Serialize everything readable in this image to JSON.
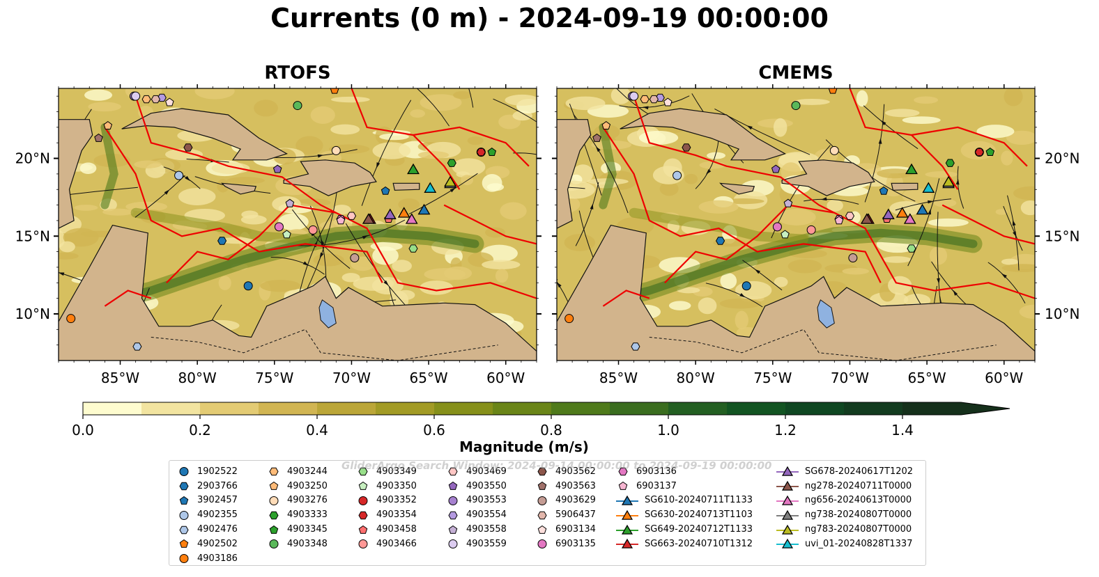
{
  "title": "Currents (0 m) - 2024-09-19 00:00:00",
  "panels": [
    {
      "title": "RTOFS"
    },
    {
      "title": "CMEMS"
    }
  ],
  "axes": {
    "lon_ticks": [
      "85°W",
      "80°W",
      "75°W",
      "70°W",
      "65°W",
      "60°W"
    ],
    "lon_values": [
      -85,
      -80,
      -75,
      -70,
      -65,
      -60
    ],
    "lat_ticks": [
      "20°N",
      "15°N",
      "10°N"
    ],
    "lat_values": [
      20,
      15,
      10
    ],
    "lon_range": [
      -89,
      -58
    ],
    "lat_range": [
      7,
      24.5
    ]
  },
  "colorbar": {
    "label": "Magnitude (m/s)",
    "ticks": [
      "0.0",
      "0.2",
      "0.4",
      "0.6",
      "0.8",
      "1.0",
      "1.2",
      "1.4"
    ],
    "tick_values": [
      0,
      0.2,
      0.4,
      0.6,
      0.8,
      1.0,
      1.2,
      1.4
    ],
    "range": [
      0,
      1.5
    ],
    "colors": [
      "#fefccf",
      "#f2e4a0",
      "#e3cb74",
      "#d1b552",
      "#bba638",
      "#a29b25",
      "#86901a",
      "#6a8518",
      "#4f7a1b",
      "#3a6d1f",
      "#235f22",
      "#125422",
      "#0f4722",
      "#123b1f",
      "#15301b"
    ]
  },
  "watermark": "GliderArgo Search Window: 2024-09-14 00:00:00 to 2024-09-19 00:00:00",
  "legend": {
    "columns": [
      [
        {
          "label": "1902522",
          "marker": "circle",
          "color": "#1f77b4"
        },
        {
          "label": "2903766",
          "marker": "hexagon",
          "color": "#1f77b4"
        },
        {
          "label": "3902457",
          "marker": "pentagon",
          "color": "#1f77b4"
        },
        {
          "label": "4902355",
          "marker": "circle",
          "color": "#aec7e8"
        },
        {
          "label": "4902476",
          "marker": "hexagon",
          "color": "#aec7e8"
        },
        {
          "label": "4902502",
          "marker": "pentagon",
          "color": "#ff7f0e"
        },
        {
          "label": "4903186",
          "marker": "circle",
          "color": "#ff7f0e"
        }
      ],
      [
        {
          "label": "4903244",
          "marker": "hexagon",
          "color": "#ffbb78"
        },
        {
          "label": "4903250",
          "marker": "pentagon",
          "color": "#ffbb78"
        },
        {
          "label": "4903276",
          "marker": "circle",
          "color": "#ffdcb8"
        },
        {
          "label": "4903333",
          "marker": "hexagon",
          "color": "#2ca02c"
        },
        {
          "label": "4903345",
          "marker": "pentagon",
          "color": "#2ca02c"
        },
        {
          "label": "4903348",
          "marker": "circle",
          "color": "#5ab85a"
        }
      ],
      [
        {
          "label": "4903349",
          "marker": "hexagon",
          "color": "#98df8a"
        },
        {
          "label": "4903350",
          "marker": "pentagon",
          "color": "#c7efc0"
        },
        {
          "label": "4903352",
          "marker": "circle",
          "color": "#d62728"
        },
        {
          "label": "4903354",
          "marker": "hexagon",
          "color": "#d62728"
        },
        {
          "label": "4903458",
          "marker": "pentagon",
          "color": "#ff6f6f"
        },
        {
          "label": "4903466",
          "marker": "circle",
          "color": "#ff9896"
        }
      ],
      [
        {
          "label": "4903469",
          "marker": "hexagon",
          "color": "#ffc6c4"
        },
        {
          "label": "4903550",
          "marker": "pentagon",
          "color": "#9467bd"
        },
        {
          "label": "4903553",
          "marker": "circle",
          "color": "#a681cf"
        },
        {
          "label": "4903554",
          "marker": "hexagon",
          "color": "#b49ae0"
        },
        {
          "label": "4903558",
          "marker": "pentagon",
          "color": "#c5b0d5"
        },
        {
          "label": "4903559",
          "marker": "circle",
          "color": "#dcccf0"
        }
      ],
      [
        {
          "label": "4903562",
          "marker": "hexagon",
          "color": "#8c564b"
        },
        {
          "label": "4903563",
          "marker": "pentagon",
          "color": "#a0716a"
        },
        {
          "label": "4903629",
          "marker": "circle",
          "color": "#c49c94"
        },
        {
          "label": "5906437",
          "marker": "hexagon",
          "color": "#e2b6ab"
        },
        {
          "label": "6903134",
          "marker": "pentagon",
          "color": "#fde0dd"
        },
        {
          "label": "6903135",
          "marker": "circle",
          "color": "#e377c2"
        }
      ],
      [
        {
          "label": "6903136",
          "marker": "hexagon",
          "color": "#e377c2"
        },
        {
          "label": "6903137",
          "marker": "pentagon",
          "color": "#f7b6d2"
        },
        {
          "label": "SG610-20240711T1133",
          "marker": "triangle",
          "color": "#1f77b4"
        },
        {
          "label": "SG630-20240713T1103",
          "marker": "triangle",
          "color": "#ff7f0e"
        },
        {
          "label": "SG649-20240712T1133",
          "marker": "triangle",
          "color": "#2ca02c"
        },
        {
          "label": "SG663-20240710T1312",
          "marker": "triangle",
          "color": "#d62728"
        }
      ],
      [
        {
          "label": "SG678-20240617T1202",
          "marker": "triangle",
          "color": "#9467bd"
        },
        {
          "label": "ng278-20240711T0000",
          "marker": "triangle",
          "color": "#8c564b"
        },
        {
          "label": "ng656-20240613T0000",
          "marker": "triangle",
          "color": "#e377c2"
        },
        {
          "label": "ng738-20240807T0000",
          "marker": "triangle",
          "color": "#7f7f7f"
        },
        {
          "label": "ng783-20240807T0000",
          "marker": "triangle",
          "color": "#bcbd22"
        },
        {
          "label": "uvi_01-20240828T1337",
          "marker": "triangle",
          "color": "#17becf"
        }
      ]
    ]
  },
  "chart_data": {
    "type": "map",
    "title": "Currents (0 m) - 2024-09-19 00:00:00",
    "panels": [
      "RTOFS",
      "CMEMS"
    ],
    "xlabel": "",
    "ylabel": "",
    "xlim": [
      -89,
      -58
    ],
    "ylim": [
      7,
      24.5
    ],
    "xticks": [
      -85,
      -80,
      -75,
      -70,
      -65,
      -60
    ],
    "yticks": [
      10,
      15,
      20
    ],
    "color_scale": {
      "variable": "Magnitude (m/s)",
      "range": [
        0,
        1.5
      ],
      "extend": "max"
    },
    "floats": [
      {
        "id": "1902522",
        "lon": -76.7,
        "lat": 11.8
      },
      {
        "id": "2903766",
        "lon": -78.4,
        "lat": 14.7
      },
      {
        "id": "3902457",
        "lon": -67.8,
        "lat": 17.9
      },
      {
        "id": "4902355",
        "lon": -81.2,
        "lat": 18.9
      },
      {
        "id": "4902476",
        "lon": -83.9,
        "lat": 7.9
      },
      {
        "id": "4902502",
        "lon": -71.1,
        "lat": 24.4
      },
      {
        "id": "4903186",
        "lon": -88.2,
        "lat": 9.7
      },
      {
        "id": "4903244",
        "lon": -83.3,
        "lat": 23.8
      },
      {
        "id": "4903250",
        "lon": -85.8,
        "lat": 22.1
      },
      {
        "id": "4903276",
        "lon": -71.0,
        "lat": 20.5
      },
      {
        "id": "4903333",
        "lon": -63.5,
        "lat": 19.7
      },
      {
        "id": "4903345",
        "lon": -60.9,
        "lat": 20.4
      },
      {
        "id": "4903348",
        "lon": -73.5,
        "lat": 23.4
      },
      {
        "id": "4903349",
        "lon": -66.0,
        "lat": 14.2
      },
      {
        "id": "4903350",
        "lon": -74.2,
        "lat": 15.1
      },
      {
        "id": "4903352",
        "lon": -61.6,
        "lat": 20.4
      },
      {
        "id": "4903354",
        "lon": -61.6,
        "lat": 20.4
      },
      {
        "id": "4903458",
        "lon": -67.6,
        "lat": 16.1
      },
      {
        "id": "4903466",
        "lon": -72.5,
        "lat": 15.4
      },
      {
        "id": "4903469",
        "lon": -70.0,
        "lat": 16.3
      },
      {
        "id": "4903550",
        "lon": -74.8,
        "lat": 19.3
      },
      {
        "id": "4903553",
        "lon": -84.1,
        "lat": 24.0
      },
      {
        "id": "4903554",
        "lon": -82.3,
        "lat": 23.9
      },
      {
        "id": "4903558",
        "lon": -74.0,
        "lat": 17.1
      },
      {
        "id": "4903559",
        "lon": -84.0,
        "lat": 24.0
      },
      {
        "id": "4903562",
        "lon": -80.6,
        "lat": 20.7
      },
      {
        "id": "4903563",
        "lon": -86.4,
        "lat": 21.3
      },
      {
        "id": "4903629",
        "lon": -69.8,
        "lat": 13.6
      },
      {
        "id": "5906437",
        "lon": -82.7,
        "lat": 23.8
      },
      {
        "id": "6903134",
        "lon": -81.8,
        "lat": 23.6
      },
      {
        "id": "6903135",
        "lon": -74.7,
        "lat": 15.6
      },
      {
        "id": "6903136",
        "lon": -70.7,
        "lat": 16.1
      },
      {
        "id": "6903137",
        "lon": -70.7,
        "lat": 16.0
      }
    ],
    "gliders": [
      {
        "id": "SG610-20240711T1133",
        "lon": -65.3,
        "lat": 16.7
      },
      {
        "id": "SG630-20240713T1103",
        "lon": -66.6,
        "lat": 16.5
      },
      {
        "id": "SG649-20240712T1133",
        "lon": -66.0,
        "lat": 19.3
      },
      {
        "id": "SG663-20240710T1312",
        "lon": -68.8,
        "lat": 16.1
      },
      {
        "id": "SG678-20240617T1202",
        "lon": -67.5,
        "lat": 16.4
      },
      {
        "id": "ng278-20240711T0000",
        "lon": -68.9,
        "lat": 16.1
      },
      {
        "id": "ng656-20240613T0000",
        "lon": -66.1,
        "lat": 16.1
      },
      {
        "id": "ng738-20240807T0000",
        "lon": -63.6,
        "lat": 18.4
      },
      {
        "id": "ng783-20240807T0000",
        "lon": -63.6,
        "lat": 18.5
      },
      {
        "id": "uvi_01-20240828T1337",
        "lon": -64.9,
        "lat": 18.1
      }
    ]
  }
}
